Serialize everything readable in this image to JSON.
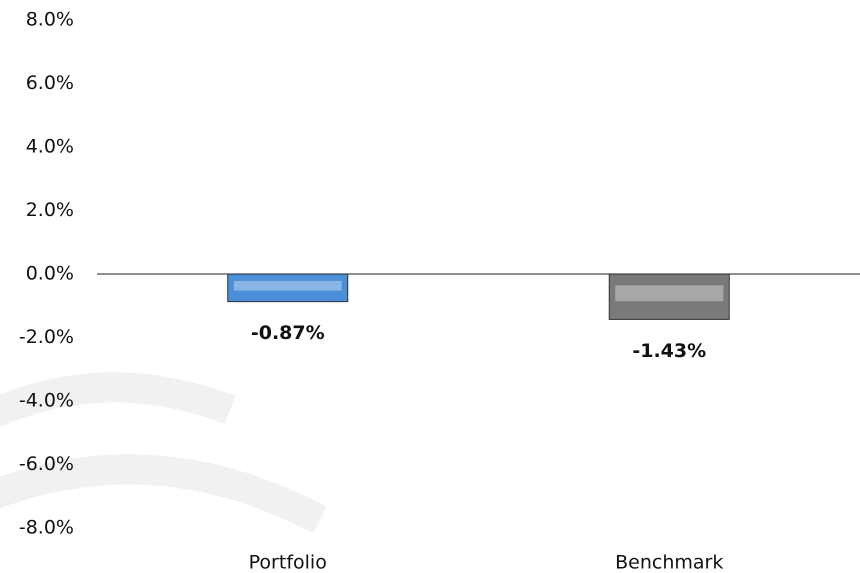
{
  "chart_data": {
    "type": "bar",
    "categories": [
      "Portfolio",
      "Benchmark"
    ],
    "values": [
      -0.87,
      -1.43
    ],
    "value_labels": [
      "-0.87%",
      "-1.43%"
    ],
    "colors": [
      "#4a8fd8",
      "#7a7a7a"
    ],
    "ylim": [
      -8,
      8
    ],
    "yticks": [
      {
        "value": -8,
        "label": "-8.0%"
      },
      {
        "value": -6,
        "label": "-6.0%"
      },
      {
        "value": -4,
        "label": "-4.0%"
      },
      {
        "value": -2,
        "label": "-2.0%"
      },
      {
        "value": 0,
        "label": "0.0%"
      },
      {
        "value": 2,
        "label": "2.0%"
      },
      {
        "value": 4,
        "label": "4.0%"
      },
      {
        "value": 6,
        "label": "6.0%"
      },
      {
        "value": 8,
        "label": "8.0%"
      }
    ],
    "grid": false
  }
}
